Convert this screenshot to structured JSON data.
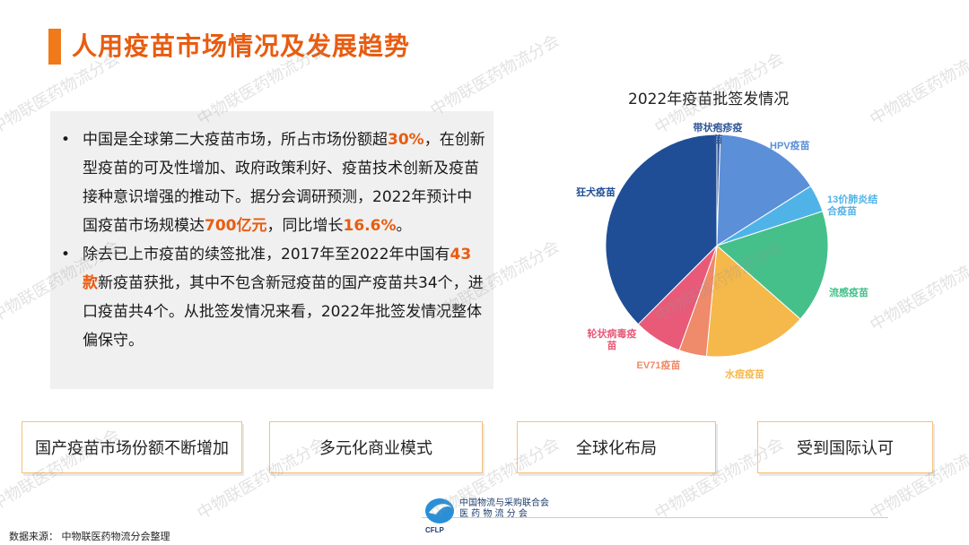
{
  "title": "人用疫苗市场情况及发展趋势",
  "bullets": [
    {
      "t1": "中国是全球第二大疫苗市场，所占市场份额超",
      "h1": "30%",
      "t2": "，在创新型疫苗的可及性增加、政府政策利好、疫苗技术创新及疫苗接种意识增强的推动下。据分会调研预测，2022年预计中国疫苗市场规模达",
      "h2": "700亿元",
      "t3": "，同比增长",
      "h3": "16.6%",
      "t4": "。"
    },
    {
      "t1": "除去已上市疫苗的续签批准，2017年至2022年中国有",
      "h1": "43款",
      "t2": "新疫苗获批，其中不包含新冠疫苗的国产疫苗共34个，进口疫苗共4个。从批签发情况来看，2022年批签发情况整体偏保守。"
    }
  ],
  "chart_data": {
    "type": "pie",
    "title": "2022年疫苗批签发情况",
    "slices": [
      {
        "label": "带状疱疹疫苗",
        "value": 0.5,
        "color": "#2f5597"
      },
      {
        "label": "HPV疫苗",
        "value": 15.5,
        "color": "#5b8fd8"
      },
      {
        "label": "13价肺炎结合疫苗",
        "value": 4,
        "color": "#4fb3e8"
      },
      {
        "label": "流感疫苗",
        "value": 16.5,
        "color": "#45c08a"
      },
      {
        "label": "水痘疫苗",
        "value": 15,
        "color": "#f5b84a"
      },
      {
        "label": "EV71疫苗",
        "value": 4,
        "color": "#ef8a6a"
      },
      {
        "label": "轮状病毒疫苗",
        "value": 7,
        "color": "#e85a78"
      },
      {
        "label": "狂犬疫苗",
        "value": 37.5,
        "color": "#1f4e96"
      }
    ]
  },
  "boxes": [
    "国产疫苗市场份额不断增加",
    "多元化商业模式",
    "全球化布局",
    "受到国际认可"
  ],
  "source": "数据来源：  中物联医药物流分会整理",
  "logo": {
    "line1": "中国物流与采购联合会",
    "line2": "医 药 物 流 分 会",
    "line3": "CFLP"
  },
  "watermark": "中物联医药物流分会"
}
